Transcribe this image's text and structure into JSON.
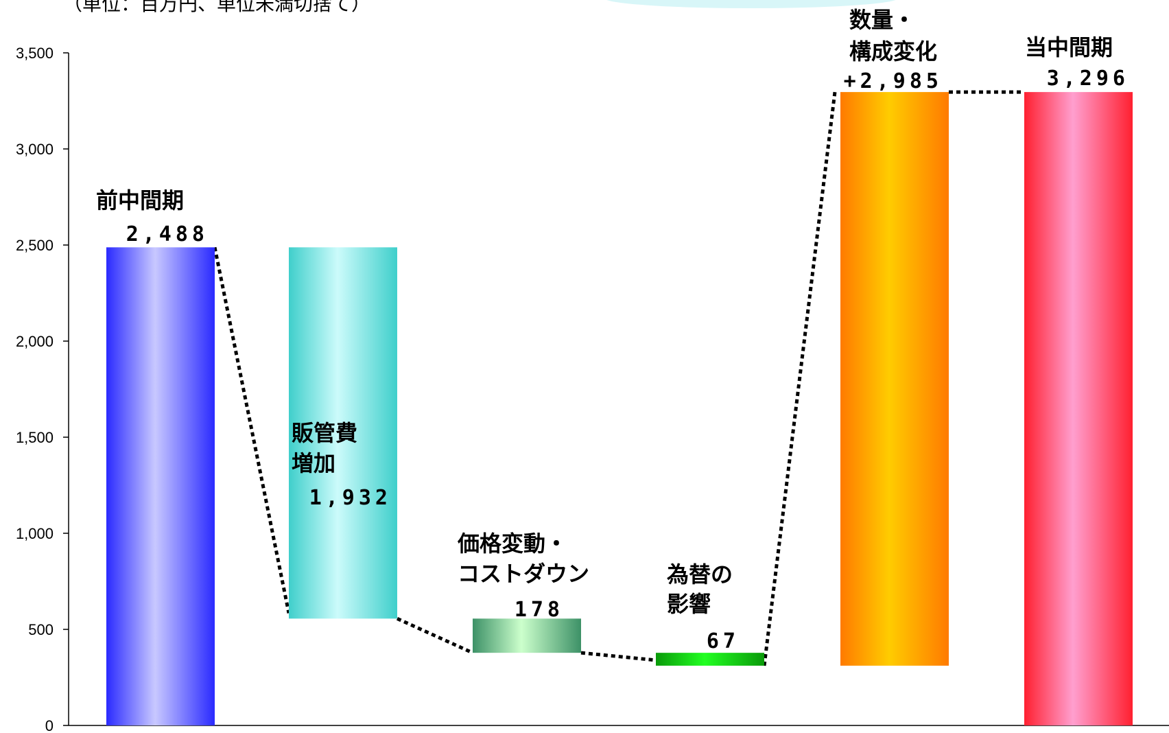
{
  "unit_note": "（単位：百万円、単位未満切捨て）",
  "chart_data": {
    "type": "bar",
    "subtype": "waterfall",
    "ylim": [
      0,
      3500
    ],
    "yticks": [
      "0",
      "500",
      "1,000",
      "1,500",
      "2,000",
      "2,500",
      "3,000",
      "3,500"
    ],
    "ytick_values": [
      0,
      500,
      1000,
      1500,
      2000,
      2500,
      3000,
      3500
    ],
    "connector_style": "dotted",
    "bars": [
      {
        "name": "前中間期",
        "label_lines": [
          "前中間期"
        ],
        "value_text": "2,488",
        "base": 0,
        "top": 2488,
        "colors": [
          "#2a2aff",
          "#c8c8ff",
          "#2a2aff"
        ]
      },
      {
        "name": "販管費増加",
        "label_lines": [
          "販管費",
          "増加"
        ],
        "value_text": "1,932",
        "base": 556,
        "top": 2488,
        "colors": [
          "#3fcfcb",
          "#ccfbfb",
          "#3fcfcb"
        ]
      },
      {
        "name": "価格変動・コストダウン",
        "label_lines": [
          "価格変動・",
          "コストダウン"
        ],
        "value_text": "178",
        "base": 378,
        "top": 556,
        "colors": [
          "#3d9167",
          "#ccffcc",
          "#3d9167"
        ]
      },
      {
        "name": "為替の影響",
        "label_lines": [
          "為替の",
          "影響"
        ],
        "value_text": "67",
        "base": 311,
        "top": 378,
        "colors": [
          "#0a9a0a",
          "#22ff22",
          "#0a9a0a"
        ]
      },
      {
        "name": "数量・構成変化",
        "label_lines": [
          "数量・",
          "構成変化"
        ],
        "value_text": "+2,985",
        "base": 311,
        "top": 3296,
        "colors": [
          "#ff7a00",
          "#ffcc00",
          "#ff7a00"
        ]
      },
      {
        "name": "当中間期",
        "label_lines": [
          "当中間期"
        ],
        "value_text": "3,296",
        "base": 0,
        "top": 3296,
        "colors": [
          "#ff2030",
          "#ff9fcf",
          "#ff2030"
        ]
      }
    ]
  }
}
